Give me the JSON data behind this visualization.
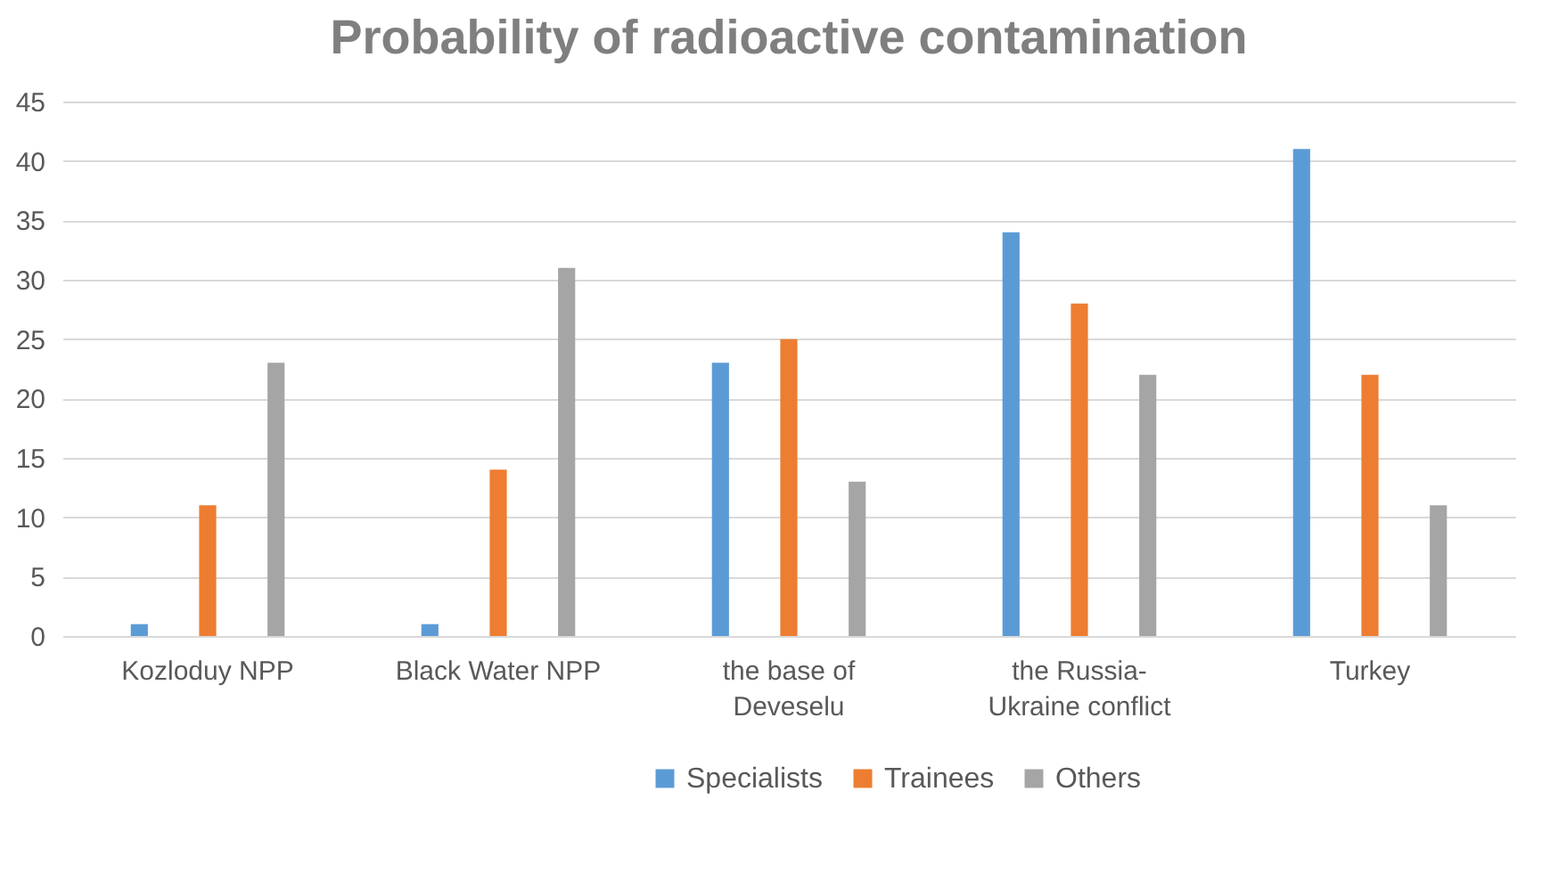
{
  "chart_data": {
    "type": "bar",
    "title": "Probability of radioactive contamination",
    "categories": [
      "Kozloduy NPP",
      "Black Water NPP",
      "the base of\nDeveselu",
      "the Russia-\nUkraine conflict",
      "Turkey"
    ],
    "series": [
      {
        "name": "Specialists",
        "color": "#5b9bd5",
        "values": [
          1,
          1,
          23,
          34,
          41
        ]
      },
      {
        "name": "Trainees",
        "color": "#ed7d31",
        "values": [
          11,
          14,
          25,
          28,
          22
        ]
      },
      {
        "name": "Others",
        "color": "#a5a5a5",
        "values": [
          23,
          31,
          13,
          22,
          11
        ]
      }
    ],
    "ylim": [
      0,
      45
    ],
    "yticks": [
      0,
      5,
      10,
      15,
      20,
      25,
      30,
      35,
      40,
      45
    ],
    "grid": "y",
    "legend": "bottom"
  }
}
